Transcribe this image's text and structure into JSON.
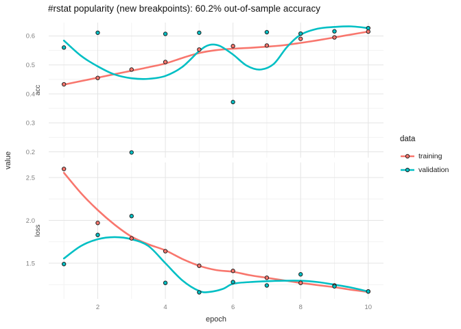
{
  "title": "#rstat popularity (new breakpoints): 60.2% out-of-sample accuracy",
  "axes": {
    "x_title": "epoch",
    "y_title": "value"
  },
  "legend": {
    "title": "data",
    "entries": [
      {
        "label": "training",
        "color": "#F8766D"
      },
      {
        "label": "validation",
        "color": "#00BFC4"
      }
    ]
  },
  "style": {
    "background": "#ffffff",
    "grid_major": "#e4e4e4",
    "grid_minor": "#f2f2f2",
    "tick_label_color": "#7f7f7f",
    "strip_label_color": "#3c3c3c",
    "point_outline": "#222222"
  },
  "chart_data": {
    "type": "line",
    "title": "#rstat popularity (new breakpoints): 60.2% out-of-sample accuracy",
    "xlabel": "epoch",
    "ylabel": "value",
    "grid": true,
    "legend_position": "right",
    "x": [
      1,
      2,
      3,
      4,
      5,
      6,
      7,
      8,
      9,
      10
    ],
    "xlim": [
      0.55,
      10.45
    ],
    "x_ticks": [
      {
        "value": 2,
        "label": "2"
      },
      {
        "value": 4,
        "label": "4"
      },
      {
        "value": 6,
        "label": "6"
      },
      {
        "value": 8,
        "label": "8"
      },
      {
        "value": 10,
        "label": "10"
      }
    ],
    "x_minor_ticks": [
      1,
      3,
      5,
      7,
      9
    ],
    "facets": [
      {
        "name": "acc",
        "ylim": [
          0.18,
          0.646
        ],
        "y_ticks": [
          {
            "value": 0.2,
            "label": "0.2"
          },
          {
            "value": 0.3,
            "label": "0.3"
          },
          {
            "value": 0.4,
            "label": "0.4"
          },
          {
            "value": 0.5,
            "label": "0.5"
          },
          {
            "value": 0.6,
            "label": "0.6"
          }
        ],
        "y_minor_ticks": [
          0.25,
          0.35,
          0.45,
          0.55
        ],
        "series": [
          {
            "name": "training",
            "color": "#F8766D",
            "values": [
              0.433,
              0.455,
              0.484,
              0.51,
              0.553,
              0.565,
              0.567,
              0.59,
              0.595,
              0.615
            ]
          },
          {
            "name": "validation",
            "color": "#00BFC4",
            "values": [
              0.56,
              0.611,
              0.198,
              0.607,
              0.611,
              0.372,
              0.613,
              0.608,
              0.616,
              0.627
            ]
          }
        ],
        "smooth": [
          {
            "name": "training",
            "color": "#F8766D",
            "points": [
              [
                1,
                0.432
              ],
              [
                1.5,
                0.444
              ],
              [
                2,
                0.456
              ],
              [
                2.5,
                0.468
              ],
              [
                3,
                0.48
              ],
              [
                3.5,
                0.492
              ],
              [
                4,
                0.505
              ],
              [
                4.5,
                0.524
              ],
              [
                5,
                0.541
              ],
              [
                5.5,
                0.551
              ],
              [
                6,
                0.556
              ],
              [
                6.5,
                0.559
              ],
              [
                7,
                0.563
              ],
              [
                7.5,
                0.568
              ],
              [
                8,
                0.576
              ],
              [
                8.5,
                0.585
              ],
              [
                9,
                0.595
              ],
              [
                9.5,
                0.605
              ],
              [
                10,
                0.615
              ]
            ]
          },
          {
            "name": "validation",
            "color": "#00BFC4",
            "points": [
              [
                1,
                0.584
              ],
              [
                1.5,
                0.532
              ],
              [
                2,
                0.495
              ],
              [
                2.5,
                0.467
              ],
              [
                3,
                0.454
              ],
              [
                3.5,
                0.452
              ],
              [
                4,
                0.462
              ],
              [
                4.5,
                0.493
              ],
              [
                5,
                0.548
              ],
              [
                5.3,
                0.569
              ],
              [
                5.6,
                0.566
              ],
              [
                6,
                0.536
              ],
              [
                6.4,
                0.498
              ],
              [
                6.8,
                0.484
              ],
              [
                7.2,
                0.503
              ],
              [
                7.6,
                0.562
              ],
              [
                8,
                0.604
              ],
              [
                8.5,
                0.625
              ],
              [
                9,
                0.631
              ],
              [
                9.5,
                0.633
              ],
              [
                10,
                0.627
              ]
            ]
          }
        ]
      },
      {
        "name": "loss",
        "ylim": [
          1.084,
          2.676
        ],
        "y_ticks": [
          {
            "value": 1.5,
            "label": "1.5"
          },
          {
            "value": 2.0,
            "label": "2.0"
          },
          {
            "value": 2.5,
            "label": "2.5"
          }
        ],
        "y_minor_ticks": [
          1.25,
          1.75,
          2.25
        ],
        "series": [
          {
            "name": "training",
            "color": "#F8766D",
            "values": [
              2.6,
              1.97,
              1.79,
              1.64,
              1.47,
              1.41,
              1.33,
              1.27,
              1.24,
              1.17
            ]
          },
          {
            "name": "validation",
            "color": "#00BFC4",
            "values": [
              1.49,
              1.83,
              2.05,
              1.27,
              1.16,
              1.28,
              1.24,
              1.37,
              1.23,
              1.17
            ]
          }
        ],
        "smooth": [
          {
            "name": "training",
            "color": "#F8766D",
            "points": [
              [
                1,
                2.555
              ],
              [
                1.5,
                2.32
              ],
              [
                2,
                2.12
              ],
              [
                2.5,
                1.95
              ],
              [
                3,
                1.81
              ],
              [
                3.5,
                1.72
              ],
              [
                4,
                1.65
              ],
              [
                4.5,
                1.55
              ],
              [
                5,
                1.47
              ],
              [
                5.5,
                1.42
              ],
              [
                6,
                1.4
              ],
              [
                6.5,
                1.36
              ],
              [
                7,
                1.33
              ],
              [
                7.5,
                1.3
              ],
              [
                8,
                1.27
              ],
              [
                8.5,
                1.245
              ],
              [
                9,
                1.22
              ],
              [
                9.5,
                1.19
              ],
              [
                10,
                1.165
              ]
            ]
          },
          {
            "name": "validation",
            "color": "#00BFC4",
            "points": [
              [
                1,
                1.555
              ],
              [
                1.5,
                1.7
              ],
              [
                2,
                1.78
              ],
              [
                2.5,
                1.805
              ],
              [
                3,
                1.78
              ],
              [
                3.5,
                1.7
              ],
              [
                4,
                1.5
              ],
              [
                4.5,
                1.3
              ],
              [
                5,
                1.175
              ],
              [
                5.3,
                1.165
              ],
              [
                5.7,
                1.2
              ],
              [
                6,
                1.26
              ],
              [
                6.5,
                1.28
              ],
              [
                7,
                1.29
              ],
              [
                7.5,
                1.295
              ],
              [
                8,
                1.295
              ],
              [
                8.5,
                1.28
              ],
              [
                9,
                1.25
              ],
              [
                9.5,
                1.215
              ],
              [
                10,
                1.17
              ]
            ]
          }
        ]
      }
    ]
  }
}
